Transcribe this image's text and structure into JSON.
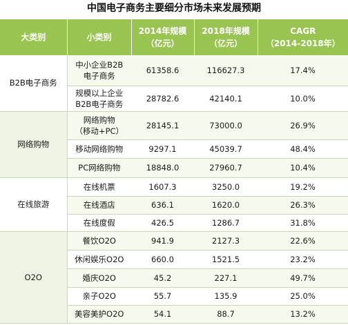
{
  "title": "中国电子商务主要细分市场未来发展预期",
  "header": {
    "col1": "大类别",
    "col2": "小类别",
    "col3_line1": "2014年规模",
    "col3_line2": "（亿元）",
    "col4_line1": "2018年规模",
    "col4_line2": "（亿元）",
    "col5_line1": "CAGR",
    "col5_line2": "（2014-2018年）"
  },
  "categories": [
    {
      "name": "B2B电子商务",
      "rows": [
        {
          "sub1": "中小企业B2B",
          "sub2": "电子商务",
          "v2014": "61358.6",
          "v2018": "116627.3",
          "cagr": "17.4%"
        },
        {
          "sub1": "规模以上企业",
          "sub2": "B2B电子商务",
          "v2014": "28782.6",
          "v2018": "42140.1",
          "cagr": "10.0%"
        }
      ]
    },
    {
      "name": "网络购物",
      "rows": [
        {
          "sub1": "网络购物",
          "sub2": "（移动+PC）",
          "v2014": "28145.1",
          "v2018": "73000.0",
          "cagr": "26.9%"
        },
        {
          "sub1": "移动网络购物",
          "sub2": "",
          "v2014": "9297.1",
          "v2018": "45039.7",
          "cagr": "48.4%"
        },
        {
          "sub1": "PC网络购物",
          "sub2": "",
          "v2014": "18848.0",
          "v2018": "27960.7",
          "cagr": "10.4%"
        }
      ]
    },
    {
      "name": "在线旅游",
      "rows": [
        {
          "sub1": "在线机票",
          "sub2": "",
          "v2014": "1607.3",
          "v2018": "3250.0",
          "cagr": "19.2%"
        },
        {
          "sub1": "在线酒店",
          "sub2": "",
          "v2014": "636.1",
          "v2018": "1620.0",
          "cagr": "26.3%"
        },
        {
          "sub1": "在线度假",
          "sub2": "",
          "v2014": "426.5",
          "v2018": "1286.7",
          "cagr": "31.8%"
        }
      ]
    },
    {
      "name": "O2O",
      "rows": [
        {
          "sub1": "餐饮O2O",
          "sub2": "",
          "v2014": "941.9",
          "v2018": "2127.3",
          "cagr": "22.6%"
        },
        {
          "sub1": "休闲娱乐O2O",
          "sub2": "",
          "v2014": "660.0",
          "v2018": "1521.5",
          "cagr": "23.2%"
        },
        {
          "sub1": "婚庆O2O",
          "sub2": "",
          "v2014": "45.2",
          "v2018": "227.1",
          "cagr": "49.7%"
        },
        {
          "sub1": "亲子O2O",
          "sub2": "",
          "v2014": "55.7",
          "v2018": "135.9",
          "cagr": "25.0%"
        },
        {
          "sub1": "美容美护O2O",
          "sub2": "",
          "v2014": "54.1",
          "v2018": "88.7",
          "cagr": "13.2%"
        }
      ]
    }
  ]
}
